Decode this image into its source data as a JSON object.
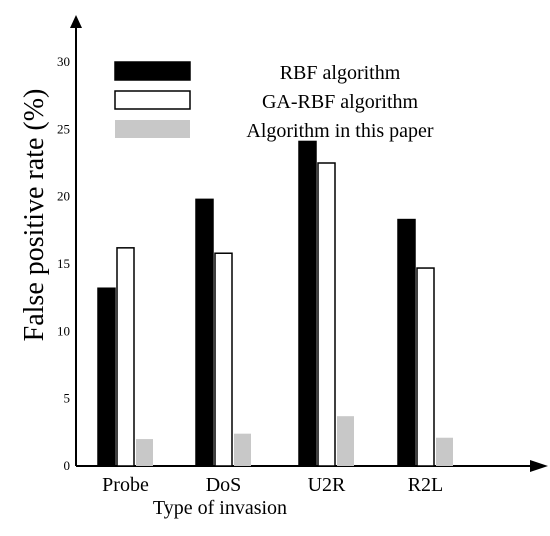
{
  "chart_data": {
    "type": "bar",
    "title": "",
    "xlabel": "Type of invasion",
    "ylabel": "False positive rate (%)",
    "categories": [
      "Probe",
      "DoS",
      "U2R",
      "R2L"
    ],
    "series": [
      {
        "name": "RBF algorithm",
        "values": [
          13.2,
          19.8,
          24.1,
          18.3
        ]
      },
      {
        "name": "GA-RBF algorithm",
        "values": [
          16.2,
          15.8,
          22.5,
          14.7
        ]
      },
      {
        "name": "Algorithm in this paper",
        "values": [
          2.0,
          2.4,
          3.7,
          2.1
        ]
      }
    ],
    "yticks": [
      "0",
      "5",
      "10",
      "15",
      "20",
      "25",
      "30"
    ],
    "ylim": [
      0,
      34
    ],
    "grid": false,
    "legend_position": "top-center",
    "colors": [
      "#000000",
      "#ffffff",
      "#c8c8c8"
    ]
  }
}
